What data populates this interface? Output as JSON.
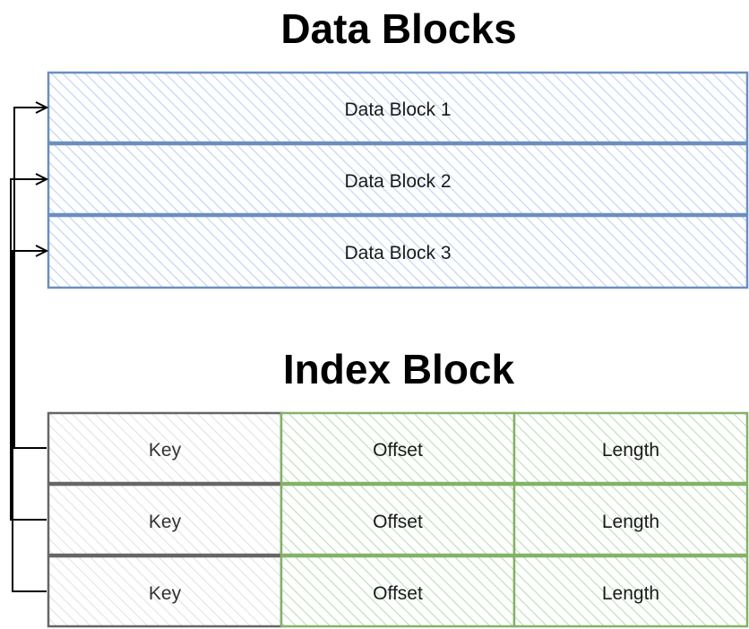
{
  "titles": {
    "data_blocks": "Data Blocks",
    "index_block": "Index Block"
  },
  "data_blocks": [
    {
      "label": "Data Block 1"
    },
    {
      "label": "Data Block 2"
    },
    {
      "label": "Data Block 3"
    }
  ],
  "index_rows": [
    {
      "key": "Key",
      "offset": "Offset",
      "length": "Length"
    },
    {
      "key": "Key",
      "offset": "Offset",
      "length": "Length"
    },
    {
      "key": "Key",
      "offset": "Offset",
      "length": "Length"
    }
  ],
  "colors": {
    "data_block_fill": "#dae8fc",
    "data_block_stroke": "#6c8ebf",
    "key_fill": "#f5f5f5",
    "key_stroke": "#666666",
    "value_fill": "#d5e8d4",
    "value_stroke": "#82b366",
    "connector": "#000000"
  }
}
